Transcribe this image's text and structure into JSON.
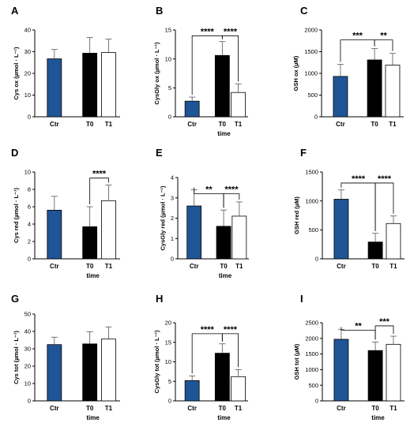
{
  "colors": {
    "Ctr": "#1f5597",
    "T0": "#000000",
    "T1": "#ffffff",
    "axis": "#000000"
  },
  "chart_data": [
    {
      "type": "bar",
      "letter": "A",
      "ylabel": "Cys ox (µmol · L⁻¹)",
      "xlabel": "",
      "categories": [
        "Ctr",
        "T0",
        "T1"
      ],
      "values": [
        26.7,
        29.3,
        29.6
      ],
      "errors": [
        4.3,
        7.2,
        6.2
      ],
      "ylim": [
        0,
        40
      ],
      "yticks": [
        "0",
        "10",
        "20",
        "30",
        "40"
      ],
      "tickvals": [
        0,
        10,
        20,
        30,
        40
      ],
      "sig": []
    },
    {
      "type": "bar",
      "letter": "B",
      "ylabel": "CysGly ox (µmol · L⁻¹)",
      "xlabel": "time",
      "categories": [
        "Ctr",
        "T0",
        "T1"
      ],
      "values": [
        2.7,
        10.6,
        4.2
      ],
      "errors": [
        0.7,
        2.4,
        1.5
      ],
      "ylim": [
        0,
        15
      ],
      "yticks": [
        "0",
        "5",
        "10",
        "15"
      ],
      "tickvals": [
        0,
        5,
        10,
        15
      ],
      "sig": [
        {
          "from": 0,
          "to": 1,
          "level": 14.0,
          "label": "****"
        },
        {
          "from": 1,
          "to": 2,
          "level": 14.0,
          "label": "****"
        }
      ]
    },
    {
      "type": "bar",
      "letter": "C",
      "ylabel": "GSH ox (µM)",
      "xlabel": "",
      "categories": [
        "Ctr",
        "T0",
        "T1"
      ],
      "values": [
        930,
        1310,
        1190
      ],
      "errors": [
        280,
        260,
        270
      ],
      "ylim": [
        0,
        2000
      ],
      "yticks": [
        "0",
        "500",
        "1000",
        "1500",
        "2000"
      ],
      "tickvals": [
        0,
        500,
        1000,
        1500,
        2000
      ],
      "sig": [
        {
          "from": 0,
          "to": 1,
          "level": 1770,
          "label": "***"
        },
        {
          "from": 1,
          "to": 2,
          "level": 1770,
          "label": "**"
        }
      ]
    },
    {
      "type": "bar",
      "letter": "D",
      "ylabel": "Cys red (µmol · L⁻¹)",
      "xlabel": "time",
      "categories": [
        "Ctr",
        "T0",
        "T1"
      ],
      "values": [
        5.6,
        3.7,
        6.7
      ],
      "errors": [
        1.6,
        2.3,
        1.8
      ],
      "ylim": [
        0,
        10
      ],
      "yticks": [
        "0",
        "2",
        "4",
        "6",
        "8",
        "10"
      ],
      "tickvals": [
        0,
        2,
        4,
        6,
        8,
        10
      ],
      "sig": [
        {
          "from": 1,
          "to": 2,
          "level": 9.3,
          "label": "****"
        }
      ]
    },
    {
      "type": "bar",
      "letter": "E",
      "ylabel": "CysGly red (µmol · L⁻¹)",
      "xlabel": "time",
      "categories": [
        "Ctr",
        "T0",
        "T1"
      ],
      "values": [
        2.6,
        1.6,
        2.1
      ],
      "errors": [
        0.8,
        0.8,
        0.7
      ],
      "ylim": [
        0,
        4
      ],
      "yticks": [
        "0",
        "1",
        "2",
        "3",
        "4"
      ],
      "tickvals": [
        0,
        1,
        2,
        3,
        4
      ],
      "sig": [
        {
          "from": 0,
          "to": 1,
          "level": 3.2,
          "label": "**"
        },
        {
          "from": 1,
          "to": 2,
          "level": 3.2,
          "label": "****"
        }
      ]
    },
    {
      "type": "bar",
      "letter": "F",
      "ylabel": "GSH red (µM)",
      "xlabel": "",
      "categories": [
        "Ctr",
        "T0",
        "T1"
      ],
      "values": [
        1030,
        290,
        610
      ],
      "errors": [
        160,
        150,
        130
      ],
      "ylim": [
        0,
        1500
      ],
      "yticks": [
        "0",
        "500",
        "1000",
        "1500"
      ],
      "tickvals": [
        0,
        500,
        1000,
        1500
      ],
      "sig": [
        {
          "from": 0,
          "to": 1,
          "level": 1310,
          "label": "****"
        },
        {
          "from": 1,
          "to": 2,
          "level": 1310,
          "label": "****"
        }
      ]
    },
    {
      "type": "bar",
      "letter": "G",
      "ylabel": "Cys tot (µmol · L⁻¹)",
      "xlabel": "time",
      "categories": [
        "Ctr",
        "T0",
        "T1"
      ],
      "values": [
        32.4,
        32.8,
        35.6
      ],
      "errors": [
        4.3,
        7.0,
        7.0
      ],
      "ylim": [
        0,
        50
      ],
      "yticks": [
        "0",
        "10",
        "20",
        "30",
        "40",
        "50"
      ],
      "tickvals": [
        0,
        10,
        20,
        30,
        40,
        50
      ],
      "sig": []
    },
    {
      "type": "bar",
      "letter": "H",
      "ylabel": "CysGly tot (µmol · L⁻¹)",
      "xlabel": "time",
      "categories": [
        "Ctr",
        "T0",
        "T1"
      ],
      "values": [
        5.2,
        12.2,
        6.2
      ],
      "errors": [
        1.2,
        2.4,
        1.8
      ],
      "ylim": [
        0,
        20
      ],
      "yticks": [
        "0",
        "5",
        "10",
        "15",
        "20"
      ],
      "tickvals": [
        0,
        5,
        10,
        15,
        20
      ],
      "sig": [
        {
          "from": 0,
          "to": 1,
          "level": 17.2,
          "label": "****"
        },
        {
          "from": 1,
          "to": 2,
          "level": 17.2,
          "label": "****"
        }
      ]
    },
    {
      "type": "bar",
      "letter": "I",
      "ylabel": "GSH tot (µM)",
      "xlabel": "time",
      "categories": [
        "Ctr",
        "T0",
        "T1"
      ],
      "values": [
        1970,
        1610,
        1810
      ],
      "errors": [
        320,
        270,
        260
      ],
      "ylim": [
        0,
        2500
      ],
      "yticks": [
        "0",
        "500",
        "1000",
        "1500",
        "2000",
        "2500"
      ],
      "tickvals": [
        0,
        500,
        1000,
        1500,
        2000,
        2500
      ],
      "sig": [
        {
          "from": 0,
          "to": 1,
          "level": 2260,
          "label": "**"
        },
        {
          "from": 1,
          "to": 2,
          "level": 2400,
          "label": "***"
        }
      ]
    }
  ]
}
